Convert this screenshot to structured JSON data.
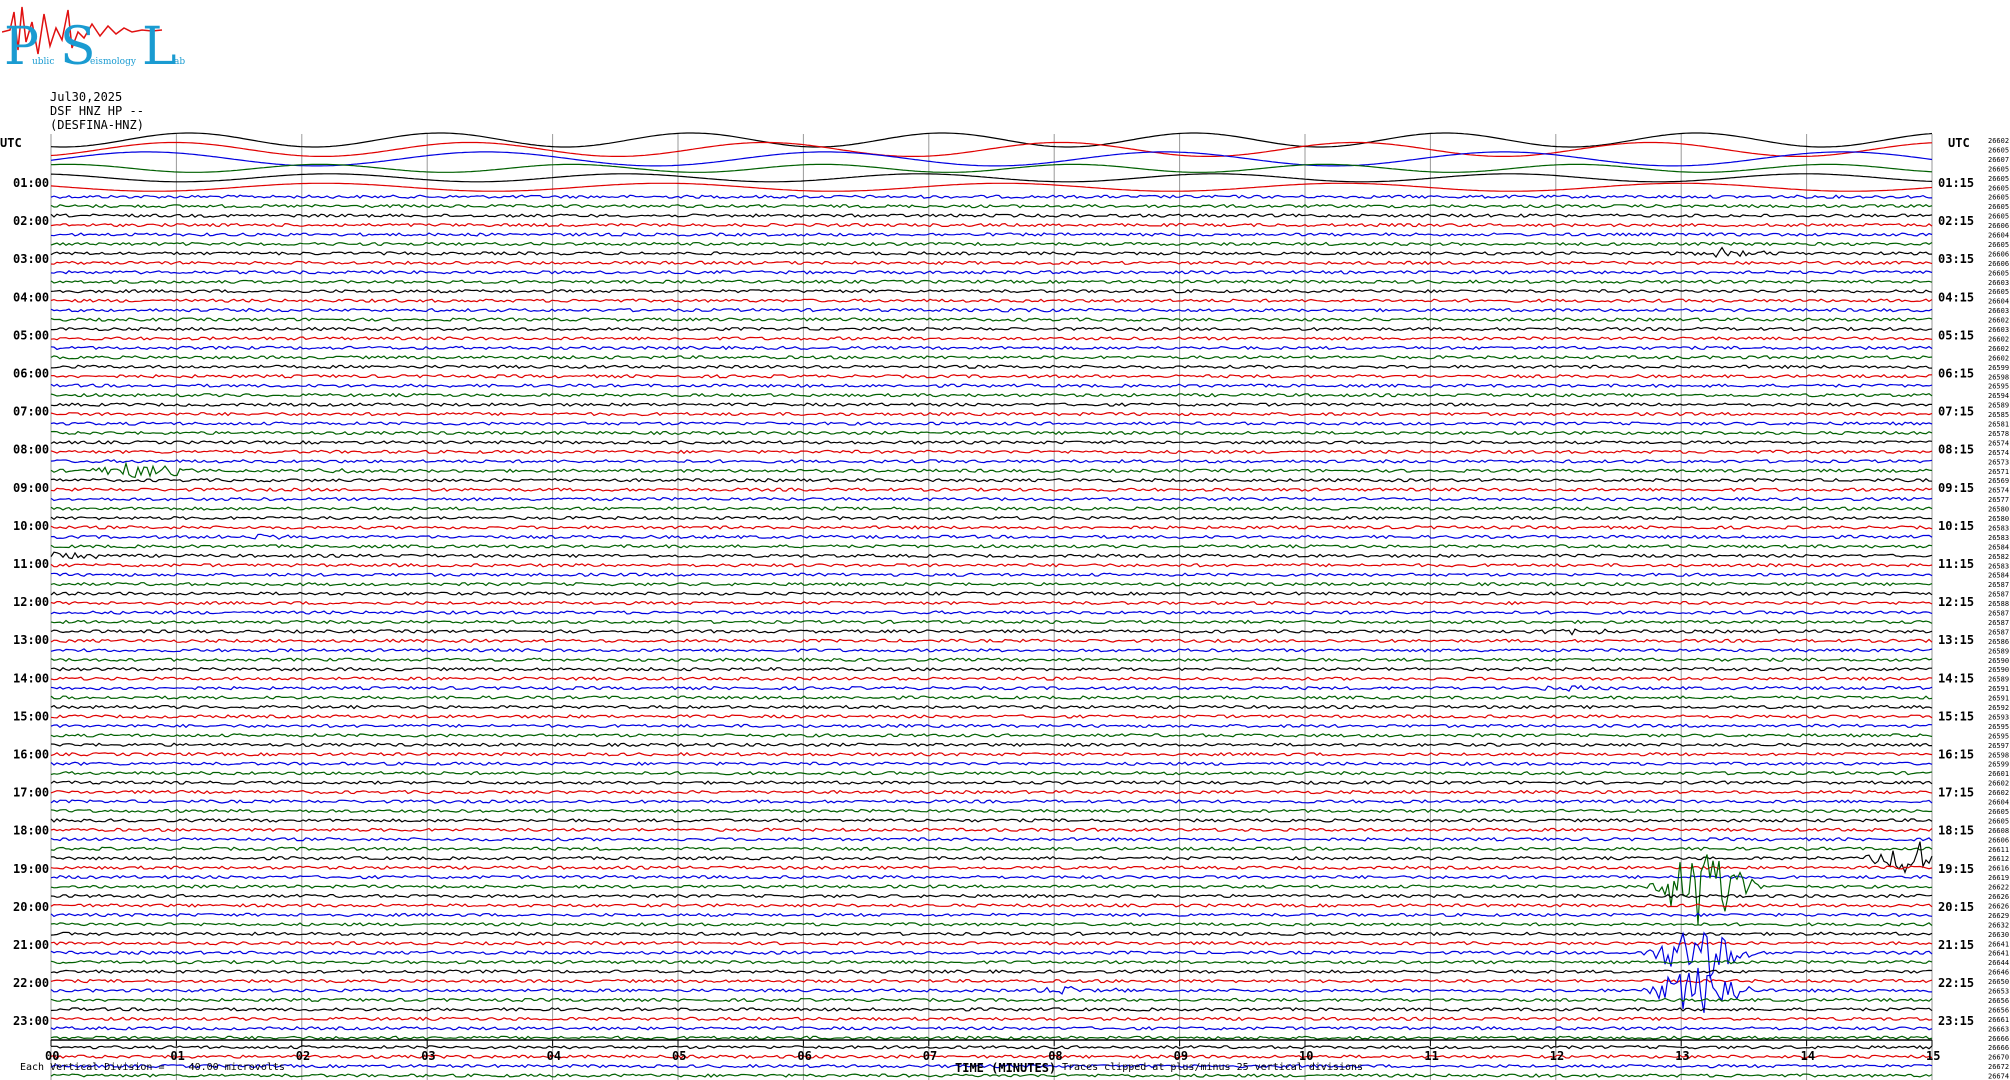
{
  "logo": {
    "letters": [
      "P",
      "S",
      "L"
    ],
    "small_text": [
      "ublic",
      "eismology",
      "ab"
    ]
  },
  "header": {
    "date": "Jul30,2025",
    "station": "DSF HNZ HP --",
    "network": "(DESFINA-HNZ)"
  },
  "axes": {
    "utc_left": "UTC",
    "utc_right": "UTC",
    "hour_labels_left": [
      "01:00",
      "02:00",
      "03:00",
      "04:00",
      "05:00",
      "06:00",
      "07:00",
      "08:00",
      "09:00",
      "10:00",
      "11:00",
      "12:00",
      "13:00",
      "14:00",
      "15:00",
      "16:00",
      "17:00",
      "18:00",
      "19:00",
      "20:00",
      "21:00",
      "22:00",
      "23:00"
    ],
    "hour_labels_right": [
      "01:15",
      "02:15",
      "03:15",
      "04:15",
      "05:15",
      "06:15",
      "07:15",
      "08:15",
      "09:15",
      "10:15",
      "11:15",
      "12:15",
      "13:15",
      "14:15",
      "15:15",
      "16:15",
      "17:15",
      "18:15",
      "19:15",
      "20:15",
      "21:15",
      "22:15",
      "23:15"
    ],
    "minute_ticks": [
      "00",
      "01",
      "02",
      "03",
      "04",
      "05",
      "06",
      "07",
      "08",
      "09",
      "10",
      "11",
      "12",
      "13",
      "14",
      "15"
    ],
    "x_title": "TIME (MINUTES)"
  },
  "footer": {
    "left": "Each Vertical Division =    40.00 microvolts",
    "right": "Traces clipped at plus/minus 25 vertical divisions"
  },
  "trace_colors": [
    "#000000",
    "#e00000",
    "#0000e0",
    "#006000"
  ],
  "right_counts": [
    "26602",
    "26605",
    "26607",
    "26605",
    "26605",
    "26605",
    "26605",
    "26605",
    "26605",
    "26606",
    "26604",
    "26605",
    "26606",
    "26606",
    "26605",
    "26603",
    "26605",
    "26604",
    "26603",
    "26602",
    "26603",
    "26602",
    "26602",
    "26602",
    "26599",
    "26598",
    "26595",
    "26594",
    "26589",
    "26585",
    "26581",
    "26578",
    "26574",
    "26574",
    "26573",
    "26571",
    "26569",
    "26574",
    "26577",
    "26580",
    "26580",
    "26583",
    "26583",
    "26584",
    "26582",
    "26583",
    "26584",
    "26587",
    "26587",
    "26588",
    "26587",
    "26587",
    "26587",
    "26586",
    "26589",
    "26590",
    "26590",
    "26589",
    "26591",
    "26591",
    "26592",
    "26593",
    "26595",
    "26595",
    "26597",
    "26598",
    "26599",
    "26601",
    "26602",
    "26602",
    "26604",
    "26605",
    "26605",
    "26608",
    "26606",
    "26611",
    "26612",
    "26616",
    "26619",
    "26622",
    "26626",
    "26626",
    "26629",
    "26632",
    "26630",
    "26641",
    "26641",
    "26644",
    "26646",
    "26650",
    "26653",
    "26656",
    "26656",
    "26661",
    "26663",
    "26666",
    "26666",
    "26670",
    "26672",
    "26674"
  ]
}
